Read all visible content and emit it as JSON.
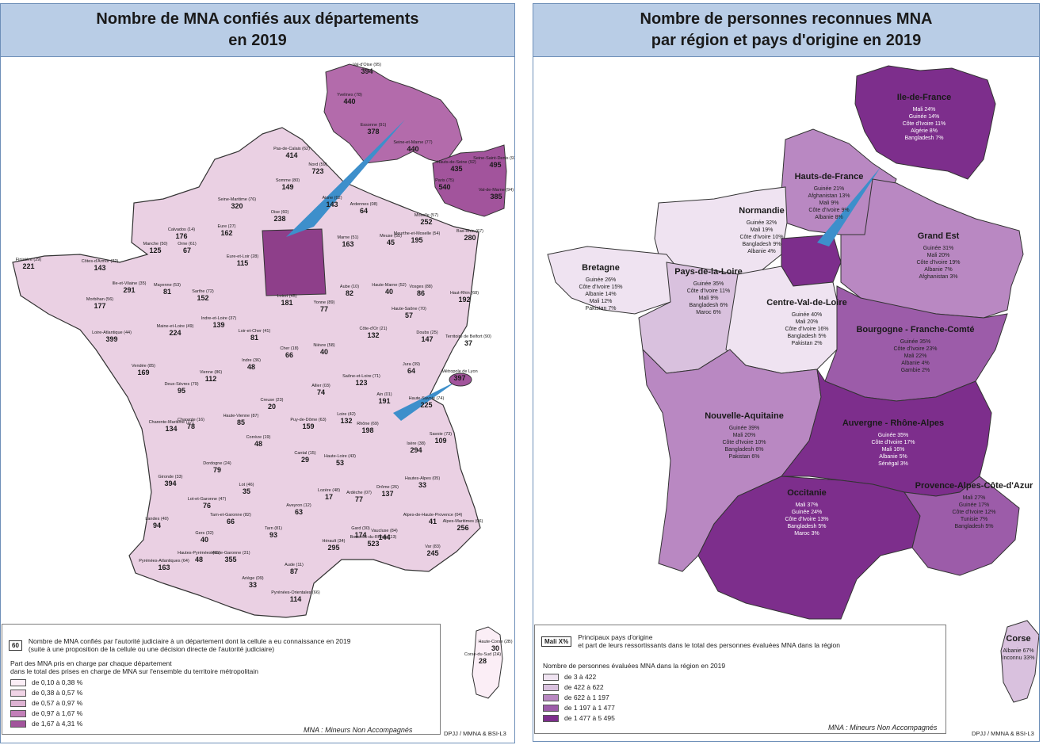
{
  "left": {
    "title_line1": "Nombre de MNA confiés aux départements",
    "title_line2": "en 2019",
    "labels": [
      {
        "name": "Val-d'Oise (95)",
        "value": "394"
      },
      {
        "name": "Yvelines (78)",
        "value": "440"
      },
      {
        "name": "Essonne (91)",
        "value": "378"
      },
      {
        "name": "Seine-et-Marne (77)",
        "value": "440"
      },
      {
        "name": "Seine-Saint-Denis (93)",
        "value": "495"
      },
      {
        "name": "Paris (75)",
        "value": "540"
      },
      {
        "name": "Hauts-de-Seine (92)",
        "value": "435"
      },
      {
        "name": "Val-de-Marne (94)",
        "value": "385"
      },
      {
        "name": "Pas-de-Calais (62)",
        "value": "414"
      },
      {
        "name": "Nord (59)",
        "value": "723"
      },
      {
        "name": "Somme (80)",
        "value": "149"
      },
      {
        "name": "Aisne (02)",
        "value": "143"
      },
      {
        "name": "Oise (60)",
        "value": "238"
      },
      {
        "name": "Seine-Maritime (76)",
        "value": "320"
      },
      {
        "name": "Ardennes (08)",
        "value": "64"
      },
      {
        "name": "Marne (51)",
        "value": "163"
      },
      {
        "name": "Meuse (55)",
        "value": "45"
      },
      {
        "name": "Moselle (57)",
        "value": "252"
      },
      {
        "name": "Meurthe-et-Moselle (54)",
        "value": "195"
      },
      {
        "name": "Bas-Rhin (67)",
        "value": "280"
      },
      {
        "name": "Calvados (14)",
        "value": "176"
      },
      {
        "name": "Manche (50)",
        "value": "125"
      },
      {
        "name": "Orne (61)",
        "value": "67"
      },
      {
        "name": "Eure (27)",
        "value": "162"
      },
      {
        "name": "Finistère (29)",
        "value": "221"
      },
      {
        "name": "Côtes-d'Armor (22)",
        "value": "143"
      },
      {
        "name": "Morbihan (56)",
        "value": "177"
      },
      {
        "name": "Ille-et-Vilaine (35)",
        "value": "291"
      },
      {
        "name": "Mayenne (53)",
        "value": "81"
      },
      {
        "name": "Sarthe (72)",
        "value": "152"
      },
      {
        "name": "Eure-et-Loir (28)",
        "value": "115"
      },
      {
        "name": "Loiret (45)",
        "value": "181"
      },
      {
        "name": "Aube (10)",
        "value": "82"
      },
      {
        "name": "Haute-Marne (52)",
        "value": "40"
      },
      {
        "name": "Vosges (88)",
        "value": "86"
      },
      {
        "name": "Haut-Rhin (68)",
        "value": "192"
      },
      {
        "name": "Loire-Atlantique (44)",
        "value": "399"
      },
      {
        "name": "Maine-et-Loire (49)",
        "value": "224"
      },
      {
        "name": "Indre-et-Loire (37)",
        "value": "139"
      },
      {
        "name": "Loir-et-Cher (41)",
        "value": "81"
      },
      {
        "name": "Yonne (89)",
        "value": "77"
      },
      {
        "name": "Côte-d'Or (21)",
        "value": "132"
      },
      {
        "name": "Haute-Saône (70)",
        "value": "57"
      },
      {
        "name": "Territoire de Belfort (90)",
        "value": "37"
      },
      {
        "name": "Doubs (25)",
        "value": "147"
      },
      {
        "name": "Vendée (85)",
        "value": "169"
      },
      {
        "name": "Deux-Sèvres (79)",
        "value": "95"
      },
      {
        "name": "Vienne (86)",
        "value": "112"
      },
      {
        "name": "Indre (36)",
        "value": "48"
      },
      {
        "name": "Cher (18)",
        "value": "66"
      },
      {
        "name": "Nièvre (58)",
        "value": "40"
      },
      {
        "name": "Saône-et-Loire (71)",
        "value": "123"
      },
      {
        "name": "Jura (39)",
        "value": "64"
      },
      {
        "name": "Métropole de Lyon",
        "value": "397"
      },
      {
        "name": "Charente-Maritime (17)",
        "value": "134"
      },
      {
        "name": "Charente (16)",
        "value": "78"
      },
      {
        "name": "Haute-Vienne (87)",
        "value": "85"
      },
      {
        "name": "Creuse (23)",
        "value": "20"
      },
      {
        "name": "Allier (03)",
        "value": "74"
      },
      {
        "name": "Puy-de-Dôme (63)",
        "value": "159"
      },
      {
        "name": "Loire (42)",
        "value": "132"
      },
      {
        "name": "Rhône (69)",
        "value": "198"
      },
      {
        "name": "Ain (01)",
        "value": "191"
      },
      {
        "name": "Haute-Savoie (74)",
        "value": "225"
      },
      {
        "name": "Savoie (73)",
        "value": "109"
      },
      {
        "name": "Isère (38)",
        "value": "294"
      },
      {
        "name": "Dordogne (24)",
        "value": "79"
      },
      {
        "name": "Corrèze (19)",
        "value": "48"
      },
      {
        "name": "Cantal (15)",
        "value": "29"
      },
      {
        "name": "Haute-Loire (43)",
        "value": "53"
      },
      {
        "name": "Gironde (33)",
        "value": "394"
      },
      {
        "name": "Lot-et-Garonne (47)",
        "value": "76"
      },
      {
        "name": "Lot (46)",
        "value": "35"
      },
      {
        "name": "Aveyron (12)",
        "value": "63"
      },
      {
        "name": "Lozère (48)",
        "value": "17"
      },
      {
        "name": "Ardèche (07)",
        "value": "77"
      },
      {
        "name": "Drôme (26)",
        "value": "137"
      },
      {
        "name": "Hautes-Alpes (05)",
        "value": "33"
      },
      {
        "name": "Landes (40)",
        "value": "94"
      },
      {
        "name": "Tarn-et-Garonne (82)",
        "value": "66"
      },
      {
        "name": "Tarn (81)",
        "value": "93"
      },
      {
        "name": "Gard (30)",
        "value": "174"
      },
      {
        "name": "Vaucluse (84)",
        "value": "144"
      },
      {
        "name": "Alpes-de-Haute-Provence (04)",
        "value": "41"
      },
      {
        "name": "Alpes-Maritimes (06)",
        "value": "256"
      },
      {
        "name": "Gers (32)",
        "value": "40"
      },
      {
        "name": "Haute-Garonne (31)",
        "value": "355"
      },
      {
        "name": "Hérault (34)",
        "value": "295"
      },
      {
        "name": "Bouches-du-Rhône (13)",
        "value": "523"
      },
      {
        "name": "Var (83)",
        "value": "245"
      },
      {
        "name": "Pyrénées-Atlantiques (64)",
        "value": "163"
      },
      {
        "name": "Hautes-Pyrénées (65)",
        "value": "48"
      },
      {
        "name": "Ariège (09)",
        "value": "33"
      },
      {
        "name": "Aude (11)",
        "value": "87"
      },
      {
        "name": "Pyrénées-Orientales (66)",
        "value": "114"
      },
      {
        "name": "Haute-Corse (2B)",
        "value": "30"
      },
      {
        "name": "Corse-du-Sud (2A)",
        "value": "28"
      }
    ],
    "legend": {
      "sample": "60",
      "line1": "Nombre de MNA confiés par l'autorité judiciaire à un département dont la cellule a eu connaissance en 2019",
      "line2": "(suite à une proposition de la cellule ou une décision directe de l'autorité judiciaire)",
      "part_title1": "Part des MNA pris en charge par chaque département",
      "part_title2": "dans le total des prises en charge de MNA sur l'ensemble du territoire métropolitain",
      "classes": [
        {
          "label": "de 0,10 à 0,38 %",
          "color": "#fbeef6"
        },
        {
          "label": "de 0,38 à 0,57 %",
          "color": "#f0d4e6"
        },
        {
          "label": "de 0,57 à 0,97 %",
          "color": "#ddb2d2"
        },
        {
          "label": "de 0,97 à 1,67 %",
          "color": "#c27fb8"
        },
        {
          "label": "de 1,67 à 4,31 %",
          "color": "#a2549c"
        }
      ],
      "note": "MNA : Mineurs Non Accompagnés",
      "credit": "DPJJ / MMNA & BSI-L3"
    }
  },
  "right": {
    "title_line1": "Nombre de personnes reconnues MNA",
    "title_line2": "par région et pays d'origine en 2019",
    "regions": [
      {
        "name": "Ile-de-France",
        "lines": [
          "Mali 24%",
          "Guinée 14%",
          "Côte d'Ivoire 11%",
          "Algérie 8%",
          "Bangladesh 7%"
        ]
      },
      {
        "name": "Hauts-de-France",
        "lines": [
          "Guinée 21%",
          "Afghanistan 13%",
          "Mali 9%",
          "Côte d'Ivoire 9%",
          "Albanie 8%"
        ]
      },
      {
        "name": "Normandie",
        "lines": [
          "Guinée 32%",
          "Mali 19%",
          "Côte d'Ivoire 10%",
          "Bangladesh 9%",
          "Albanie 4%"
        ]
      },
      {
        "name": "Grand Est",
        "lines": [
          "Guinée 31%",
          "Mali 20%",
          "Côte d'Ivoire 19%",
          "Albanie 7%",
          "Afghanistan 3%"
        ]
      },
      {
        "name": "Bretagne",
        "lines": [
          "Guinée 26%",
          "Côte d'Ivoire 15%",
          "Albanie 14%",
          "Mali 12%",
          "Pakistan 7%"
        ]
      },
      {
        "name": "Pays-de-la-Loire",
        "lines": [
          "Guinée 35%",
          "Côte d'Ivoire 11%",
          "Mali 9%",
          "Bangladesh 6%",
          "Maroc 6%"
        ]
      },
      {
        "name": "Centre-Val-de-Loire",
        "lines": [
          "Guinée 40%",
          "Mali 20%",
          "Côte d'Ivoire 16%",
          "Bangladesh 5%",
          "Pakistan 2%"
        ]
      },
      {
        "name": "Bourgogne - Franche-Comté",
        "lines": [
          "Guinée 35%",
          "Côte d'Ivoire 23%",
          "Mali 22%",
          "Albanie 4%",
          "Gambie 2%"
        ]
      },
      {
        "name": "Nouvelle-Aquitaine",
        "lines": [
          "Guinée 39%",
          "Mali 20%",
          "Côte d'Ivoire 10%",
          "Bangladesh 6%",
          "Pakistan 6%"
        ]
      },
      {
        "name": "Auvergne - Rhône-Alpes",
        "lines": [
          "Guinée 35%",
          "Côte d'Ivoire 17%",
          "Mali 16%",
          "Albanie 5%",
          "Sénégal 3%"
        ]
      },
      {
        "name": "Occitanie",
        "lines": [
          "Mali 37%",
          "Guinée 24%",
          "Côte d'Ivoire 13%",
          "Bangladesh 5%",
          "Maroc 3%"
        ]
      },
      {
        "name": "Provence-Alpes-Côte-d'Azur",
        "lines": [
          "Mali 27%",
          "Guinée 17%",
          "Côte d'Ivoire 12%",
          "Tunisie 7%",
          "Bangladesh 5%"
        ]
      },
      {
        "name": "Corse",
        "lines": [
          "Albanie 67%",
          "Inconnu 33%"
        ]
      }
    ],
    "legend": {
      "sample": "Mali X%",
      "line1": "Principaux pays d'origine",
      "line2": "et part de leurs ressortissants dans le total des personnes évaluées MNA dans la région",
      "count_title": "Nombre de personnes évaluées MNA dans la région en 2019",
      "classes": [
        {
          "label": "de 3 à 422",
          "color": "#efe3f1"
        },
        {
          "label": "de 422 à 622",
          "color": "#d9c1de"
        },
        {
          "label": "de 622 à 1 197",
          "color": "#b988c2"
        },
        {
          "label": "de 1 197 à 1 477",
          "color": "#9c5ca9"
        },
        {
          "label": "de 1 477 à 5 495",
          "color": "#7d2e8c"
        }
      ],
      "note": "MNA : Mineurs Non Accompagnés",
      "credit": "DPJJ / MMNA & BSI-L3"
    }
  }
}
